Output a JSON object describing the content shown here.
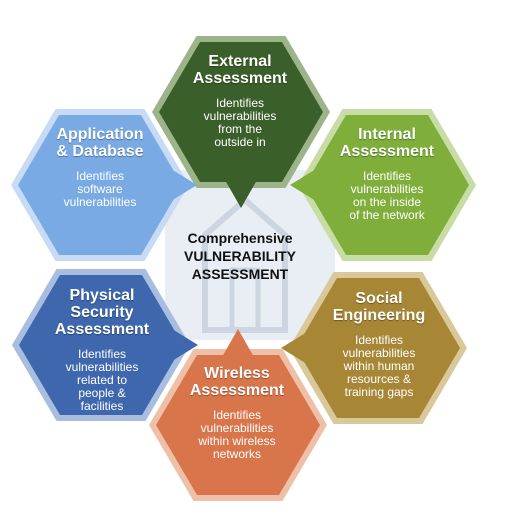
{
  "center": {
    "line1": "Comprehensive",
    "line2": "VULNERABILITY",
    "line3": "ASSESSMENT"
  },
  "segments": [
    {
      "id": "external",
      "title": [
        "External",
        "Assessment"
      ],
      "desc": [
        "Identifies",
        "vulnerabilities",
        "from the",
        "outside in"
      ],
      "fill": "#3b5f2a",
      "border": "#9cb489"
    },
    {
      "id": "internal",
      "title": [
        "Internal",
        "Assessment"
      ],
      "desc": [
        "Identifies",
        "vulnerabilities",
        "on the inside",
        "of the network"
      ],
      "fill": "#7fae3a",
      "border": "#c8dca6"
    },
    {
      "id": "social",
      "title": [
        "Social",
        "Engineering"
      ],
      "desc": [
        "Identifies",
        "vulnerabilities",
        "within human",
        "resources &",
        "training gaps"
      ],
      "fill": "#a78636",
      "border": "#d9c89a"
    },
    {
      "id": "wireless",
      "title": [
        "Wireless",
        "Assessment"
      ],
      "desc": [
        "Identifies",
        "vulnerabilities",
        "within wireless",
        "networks"
      ],
      "fill": "#d9754a",
      "border": "#efc0a8"
    },
    {
      "id": "physical",
      "title": [
        "Physical",
        "Security",
        "Assessment"
      ],
      "desc": [
        "Identifies",
        "vulnerabilities",
        "related to",
        "people &",
        "facilities"
      ],
      "fill": "#3e67ad",
      "border": "#a8bde0"
    },
    {
      "id": "application",
      "title": [
        "Application",
        "& Database"
      ],
      "desc": [
        "Identifies",
        "software",
        "vulnerabilities"
      ],
      "fill": "#7aaae4",
      "border": "#c7dbf5"
    }
  ]
}
